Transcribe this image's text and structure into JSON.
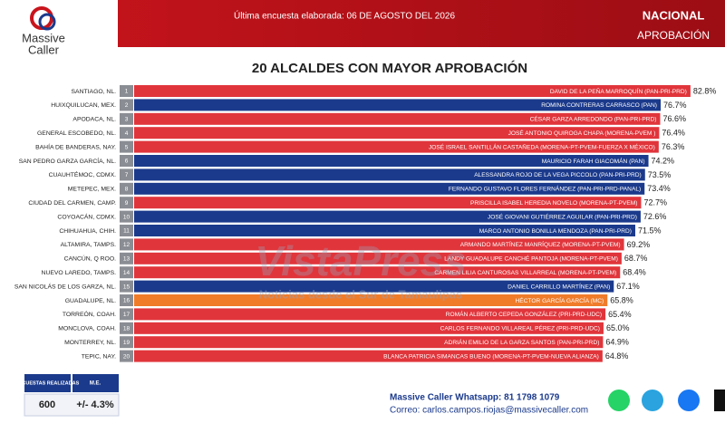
{
  "header": {
    "brand": "Massive",
    "brand2": "Caller",
    "survey_date": "Última encuesta elaborada: 06 DE AGOSTO DEL 2026",
    "scope": "NACIONAL",
    "measure": "APROBACIÓN"
  },
  "chart_data": {
    "type": "bar",
    "title": "20 ALCALDES CON MAYOR APROBACIÓN",
    "categories": [
      "SANTIAGO, NL.",
      "HUIXQUILUCAN, MEX.",
      "APODACA, NL.",
      "GENERAL ESCOBEDO, NL.",
      "BAHÍA DE BANDERAS, NAY.",
      "SAN PEDRO GARZA GARCÍA, NL.",
      "CUAUHTÉMOC, CDMX.",
      "METEPEC, MEX.",
      "CIUDAD DEL CARMEN, CAMP.",
      "COYOACÁN, CDMX.",
      "CHIHUAHUA, CHIH.",
      "ALTAMIRA, TAMPS.",
      "CANCÚN, Q ROO.",
      "NUEVO LAREDO, TAMPS.",
      "SAN NICOLÁS DE LOS GARZA, NL.",
      "GUADALUPE, NL.",
      "TORREÓN, COAH.",
      "MONCLOVA, COAH.",
      "MONTERREY, NL.",
      "TEPIC, NAY."
    ],
    "ranks": [
      1,
      2,
      3,
      4,
      5,
      6,
      7,
      8,
      9,
      10,
      11,
      12,
      13,
      14,
      15,
      16,
      17,
      18,
      19,
      20
    ],
    "candidates": [
      "DAVID DE LA PEÑA MARROQUÍN (PAN-PRI-PRD)",
      "ROMINA CONTRERAS CARRASCO (PAN)",
      "CÉSAR GARZA ARREDONDO (PAN-PRI-PRD)",
      "JOSÉ ANTONIO QUIROGA CHAPA (MORENA-PVEM )",
      "JOSÉ ISRAEL SANTILLÁN CASTAÑEDA (MORENA-PT-PVEM-FUERZA X MÉXICO)",
      "MAURICIO FARAH GIACOMÁN (PAN)",
      "ALESSANDRA ROJO DE LA VEGA PICCOLO (PAN-PRI-PRD)",
      "FERNANDO GUSTAVO FLORES FERNÁNDEZ (PAN-PRI-PRD-PANAL)",
      "PRISCILLA ISABEL HEREDIA NOVELO (MORENA-PT-PVEM)",
      "JOSÉ GIOVANI GUTIÉRREZ AGUILAR (PAN-PRI-PRD)",
      "MARCO ANTONIO BONILLA MENDOZA (PAN-PRI-PRD)",
      "ARMANDO MARTÍNEZ MANRÍQUEZ (MORENA-PT-PVEM)",
      "LANDY GUADALUPE CANCHÉ PANTOJA (MORENA-PT-PVEM)",
      "CARMEN LILIA CANTUROSAS VILLARREAL (MORENA-PT-PVEM)",
      "DANIEL CARRILLO MARTÍNEZ (PAN)",
      "HÉCTOR GARCÍA GARCÍA (MC)",
      "ROMÁN ALBERTO CEPEDA GONZÁLEZ (PRI-PRD-UDC)",
      "CARLOS FERNANDO VILLAREAL PÉREZ (PRI-PRD-UDC)",
      "ADRIÁN EMILIO DE LA GARZA SANTOS (PAN-PRI-PRD)",
      "BLANCA PATRICIA SIMANCAS BUENO (MORENA-PT-PVEM-NUEVA ALIANZA)"
    ],
    "values": [
      82.8,
      76.7,
      76.6,
      76.4,
      76.3,
      74.2,
      73.5,
      73.4,
      72.7,
      72.6,
      71.5,
      69.2,
      68.7,
      68.4,
      67.1,
      65.8,
      65.4,
      65.0,
      64.9,
      64.8
    ],
    "value_labels": [
      "82.8%",
      "76.7%",
      "76.6%",
      "76.4%",
      "76.3%",
      "74.2%",
      "73.5%",
      "73.4%",
      "72.7%",
      "72.6%",
      "71.5%",
      "69.2%",
      "68.7%",
      "68.4%",
      "67.1%",
      "65.8%",
      "65.4%",
      "65.0%",
      "64.9%",
      "64.8%"
    ],
    "colors": [
      "#e0353b",
      "#1b3a8c",
      "#e0353b",
      "#e0353b",
      "#e0353b",
      "#1b3a8c",
      "#1b3a8c",
      "#1b3a8c",
      "#e0353b",
      "#1b3a8c",
      "#1b3a8c",
      "#e0353b",
      "#e0353b",
      "#e0353b",
      "#1b3a8c",
      "#f07c2a",
      "#e0353b",
      "#e0353b",
      "#e0353b",
      "#e0353b"
    ]
  },
  "footer": {
    "surveys_label": "ENCUESTAS REALIZADAS",
    "me_label": "M.E.",
    "surveys": "600",
    "me": "+/- 4.3%",
    "whatsapp": "Massive Caller Whatsapp: 81 1798 1079",
    "email": "Correo: carlos.campos.riojas@massivecaller.com"
  },
  "watermark": {
    "brand": "VistaPress",
    "tagline": "Noticias desde el Sur de Tamaulipas"
  }
}
